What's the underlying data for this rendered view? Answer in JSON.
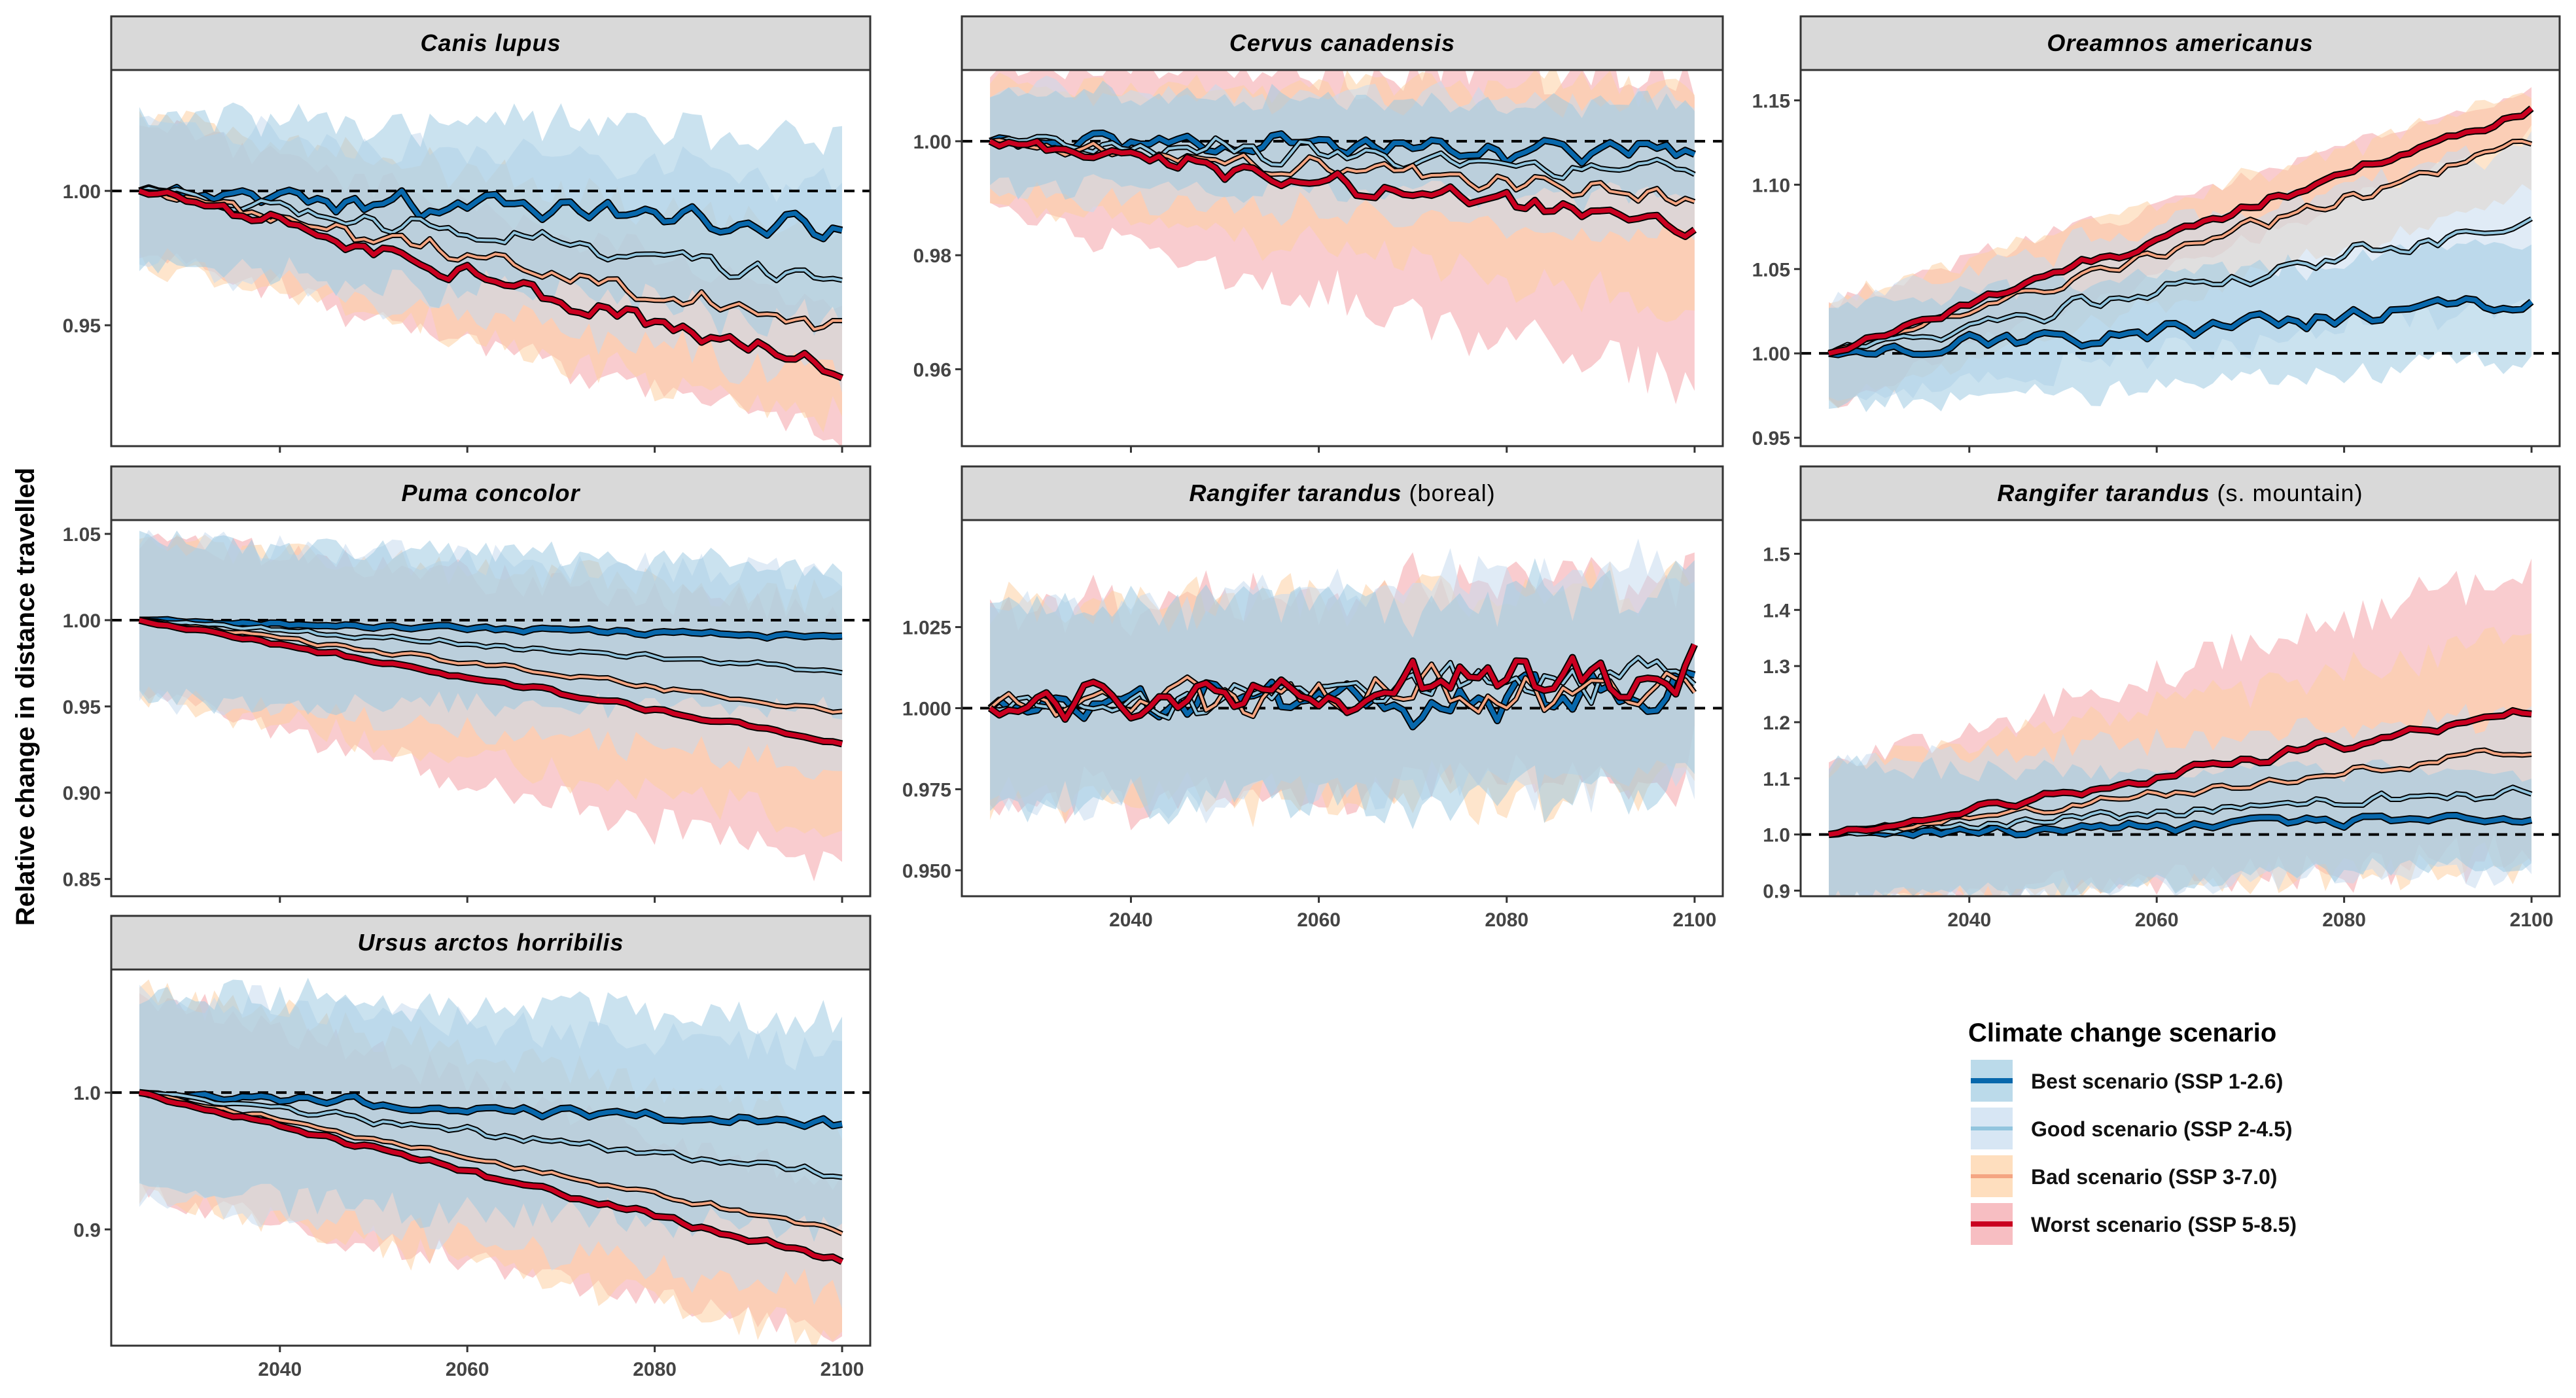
{
  "figure": {
    "ylabel": "Relative change in distance travelled",
    "x_ticks": [
      2040,
      2060,
      2080,
      2100
    ],
    "colors": {
      "best": "#0868ac",
      "good": "#92c5de",
      "bad": "#f4a582",
      "worst": "#ca0020",
      "best_ribbon": "#9ecae1",
      "good_ribbon": "#c6dbef",
      "bad_ribbon": "#fdd0a2",
      "worst_ribbon": "#f4a3a8",
      "strip_bg": "#d9d9d9"
    }
  },
  "legend": {
    "title": "Climate change scenario",
    "items": [
      {
        "key": "best",
        "label": "Best scenario (SSP 1-2.6)"
      },
      {
        "key": "good",
        "label": "Good scenario (SSP 2-4.5)"
      },
      {
        "key": "bad",
        "label": "Bad scenario (SSP 3-7.0)"
      },
      {
        "key": "worst",
        "label": "Worst scenario (SSP 5-8.5)"
      }
    ]
  },
  "chart_data": [
    {
      "type": "line",
      "title": "Canis lupus",
      "title_suffix": "",
      "x_range": [
        2025,
        2100
      ],
      "xlim": [
        2022,
        2103
      ],
      "ylim": [
        0.905,
        1.045
      ],
      "y_ticks": [
        0.95,
        1.0
      ],
      "y_tick_labels": [
        "0.95",
        "1.00"
      ],
      "reference_line": 1.0,
      "series": [
        {
          "key": "best",
          "end": 0.987,
          "noise": 0.006,
          "band": [
            0.028,
            0.035
          ]
        },
        {
          "key": "good",
          "end": 0.967,
          "noise": 0.005,
          "band": [
            0.025,
            0.036
          ]
        },
        {
          "key": "bad",
          "end": 0.949,
          "noise": 0.005,
          "band": [
            0.027,
            0.034
          ]
        },
        {
          "key": "worst",
          "end": 0.934,
          "noise": 0.005,
          "band": [
            0.025,
            0.024
          ]
        }
      ]
    },
    {
      "type": "line",
      "title": "Cervus canadensis",
      "title_suffix": "",
      "x_range": [
        2025,
        2100
      ],
      "xlim": [
        2022,
        2103
      ],
      "ylim": [
        0.9465,
        1.0125
      ],
      "y_ticks": [
        0.96,
        0.98,
        1.0
      ],
      "y_tick_labels": [
        "0.96",
        "0.98",
        "1.00"
      ],
      "reference_line": 1.0,
      "series": [
        {
          "key": "best",
          "end": 0.998,
          "noise": 0.0028,
          "band": [
            0.008,
            0.008
          ]
        },
        {
          "key": "good",
          "end": 0.995,
          "noise": 0.0025,
          "band": [
            0.009,
            0.012
          ]
        },
        {
          "key": "bad",
          "end": 0.99,
          "noise": 0.0025,
          "band": [
            0.01,
            0.02
          ]
        },
        {
          "key": "worst",
          "end": 0.985,
          "noise": 0.0025,
          "band": [
            0.012,
            0.028
          ]
        }
      ]
    },
    {
      "type": "line",
      "title": "Oreamnos americanus",
      "title_suffix": "",
      "x_range": [
        2025,
        2100
      ],
      "xlim": [
        2022,
        2103
      ],
      "ylim": [
        0.945,
        1.168
      ],
      "y_ticks": [
        0.95,
        1.0,
        1.05,
        1.1,
        1.15
      ],
      "y_tick_labels": [
        "0.95",
        "1.00",
        "1.05",
        "1.10",
        "1.15"
      ],
      "reference_line": 1.0,
      "series": [
        {
          "key": "best",
          "end": 1.03,
          "noise": 0.007,
          "band": [
            0.03,
            0.035
          ]
        },
        {
          "key": "good",
          "end": 1.078,
          "noise": 0.007,
          "band": [
            0.03,
            0.045
          ]
        },
        {
          "key": "bad",
          "end": 1.126,
          "noise": 0.005,
          "band": [
            0.03,
            0.03
          ]
        },
        {
          "key": "worst",
          "end": 1.145,
          "noise": 0.004,
          "band": [
            0.03,
            0.012
          ]
        }
      ]
    },
    {
      "type": "line",
      "title": "Puma concolor",
      "title_suffix": "",
      "x_range": [
        2025,
        2100
      ],
      "xlim": [
        2022,
        2103
      ],
      "ylim": [
        0.84,
        1.058
      ],
      "y_ticks": [
        0.85,
        0.9,
        0.95,
        1.0,
        1.05
      ],
      "y_tick_labels": [
        "0.85",
        "0.90",
        "0.95",
        "1.00",
        "1.05"
      ],
      "reference_line": 1.0,
      "series": [
        {
          "key": "best",
          "end": 0.99,
          "noise": 0.002,
          "band": [
            0.045,
            0.042
          ]
        },
        {
          "key": "good",
          "end": 0.971,
          "noise": 0.002,
          "band": [
            0.045,
            0.055
          ]
        },
        {
          "key": "bad",
          "end": 0.947,
          "noise": 0.002,
          "band": [
            0.045,
            0.065
          ]
        },
        {
          "key": "worst",
          "end": 0.929,
          "noise": 0.002,
          "band": [
            0.045,
            0.075
          ]
        }
      ]
    },
    {
      "type": "line",
      "title": "Rangifer tarandus",
      "title_suffix": " (boreal)",
      "x_range": [
        2025,
        2100
      ],
      "xlim": [
        2022,
        2103
      ],
      "ylim": [
        0.942,
        1.058
      ],
      "y_ticks": [
        0.95,
        0.975,
        1.0,
        1.025
      ],
      "y_tick_labels": [
        "0.950",
        "0.975",
        "1.000",
        "1.025"
      ],
      "reference_line": 1.0,
      "series": [
        {
          "key": "best",
          "end": 1.004,
          "noise": 0.009,
          "band": [
            0.03,
            0.032
          ]
        },
        {
          "key": "good",
          "end": 1.01,
          "noise": 0.009,
          "band": [
            0.03,
            0.032
          ]
        },
        {
          "key": "bad",
          "end": 1.008,
          "noise": 0.009,
          "band": [
            0.03,
            0.032
          ]
        },
        {
          "key": "worst",
          "end": 1.012,
          "noise": 0.009,
          "band": [
            0.03,
            0.03
          ]
        }
      ]
    },
    {
      "type": "line",
      "title": "Rangifer tarandus",
      "title_suffix": " (s. mountain)",
      "x_range": [
        2025,
        2100
      ],
      "xlim": [
        2022,
        2103
      ],
      "ylim": [
        0.89,
        1.56
      ],
      "y_ticks": [
        0.9,
        1.0,
        1.1,
        1.2,
        1.3,
        1.4,
        1.5
      ],
      "y_tick_labels": [
        "0.9",
        "1.0",
        "1.1",
        "1.2",
        "1.3",
        "1.4",
        "1.5"
      ],
      "reference_line": 1.0,
      "series": [
        {
          "key": "best",
          "end": 1.03,
          "noise": 0.012,
          "band": [
            0.12,
            0.08
          ]
        },
        {
          "key": "good",
          "end": 1.08,
          "noise": 0.012,
          "band": [
            0.12,
            0.14
          ]
        },
        {
          "key": "bad",
          "end": 1.15,
          "noise": 0.012,
          "band": [
            0.12,
            0.2
          ]
        },
        {
          "key": "worst",
          "end": 1.22,
          "noise": 0.012,
          "band": [
            0.12,
            0.26
          ]
        }
      ]
    },
    {
      "type": "line",
      "title": "Ursus arctos horribilis",
      "title_suffix": "",
      "x_range": [
        2025,
        2100
      ],
      "xlim": [
        2022,
        2103
      ],
      "ylim": [
        0.815,
        1.09
      ],
      "y_ticks": [
        0.9,
        1.0
      ],
      "y_tick_labels": [
        "0.9",
        "1.0"
      ],
      "reference_line": 1.0,
      "series": [
        {
          "key": "best",
          "end": 0.977,
          "noise": 0.005,
          "band": [
            0.075,
            0.075
          ]
        },
        {
          "key": "good",
          "end": 0.94,
          "noise": 0.004,
          "band": [
            0.075,
            0.085
          ]
        },
        {
          "key": "bad",
          "end": 0.898,
          "noise": 0.003,
          "band": [
            0.075,
            0.08
          ]
        },
        {
          "key": "worst",
          "end": 0.877,
          "noise": 0.003,
          "band": [
            0.075,
            0.055
          ]
        }
      ]
    }
  ]
}
